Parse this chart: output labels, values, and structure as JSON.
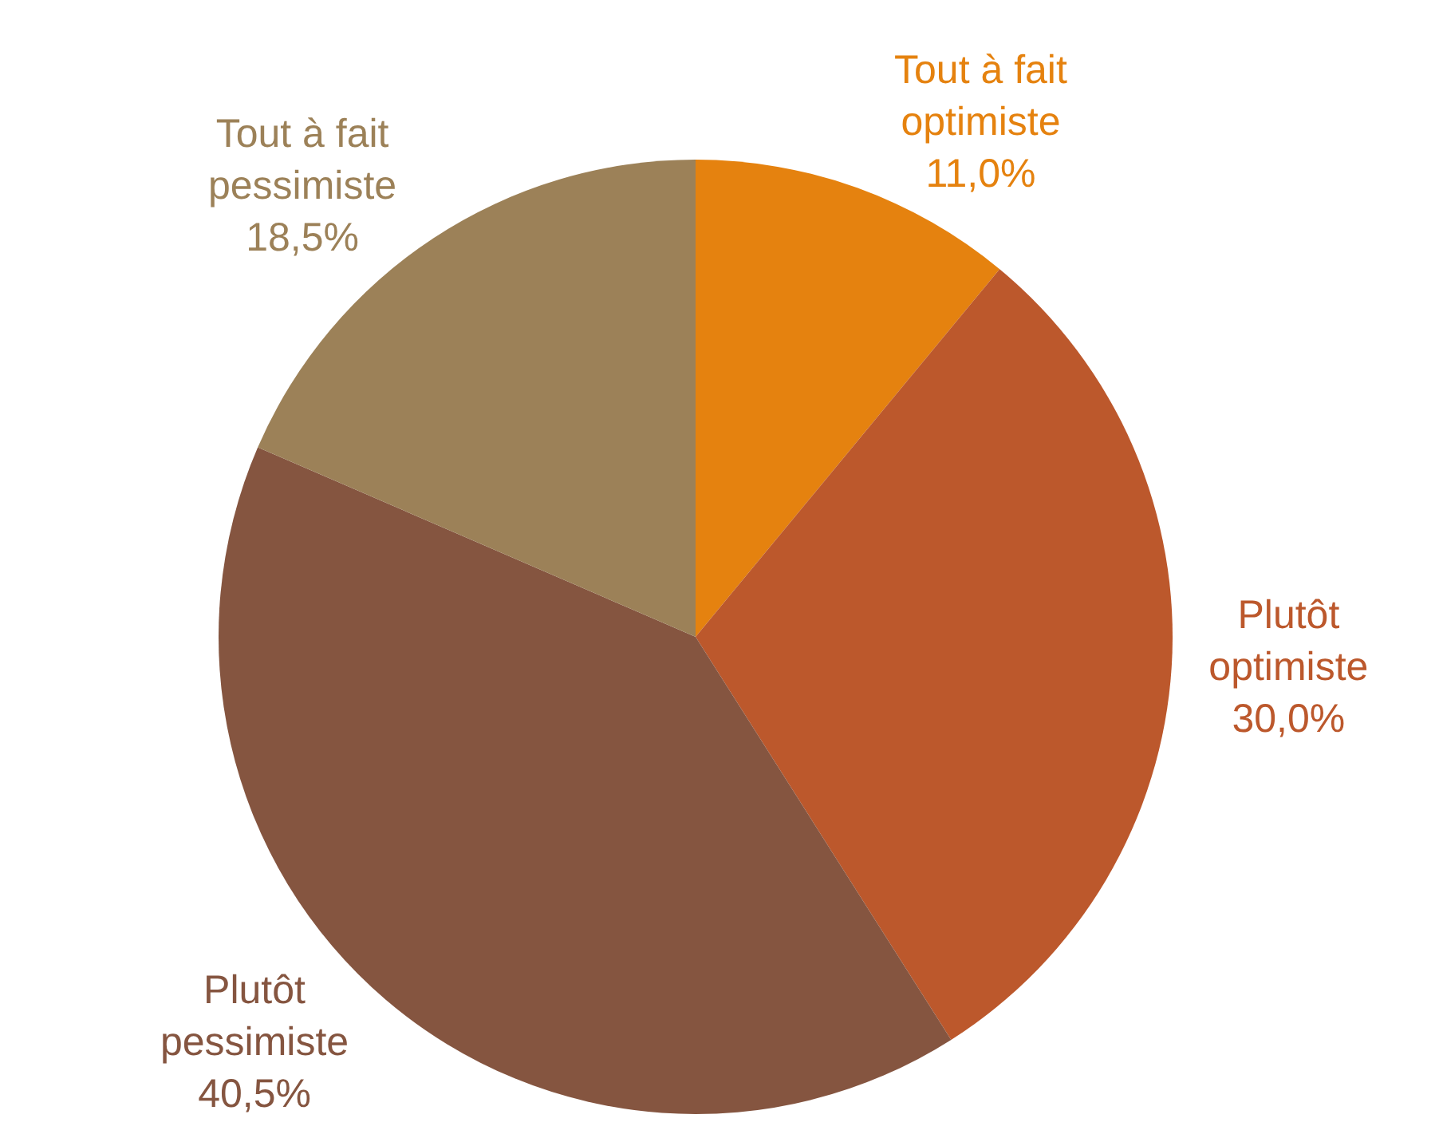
{
  "chart_data": {
    "type": "pie",
    "categories": [
      "Tout à fait optimiste",
      "Plutôt optimiste",
      "Plutôt pessimiste",
      "Tout à fait pessimiste"
    ],
    "values": [
      11.0,
      30.0,
      40.5,
      18.5
    ],
    "value_labels": [
      "11,0%",
      "30,0%",
      "40,5%",
      "18,5%"
    ],
    "colors": [
      "#e5820f",
      "#bc582c",
      "#855540",
      "#9c8158"
    ],
    "legend": false
  }
}
